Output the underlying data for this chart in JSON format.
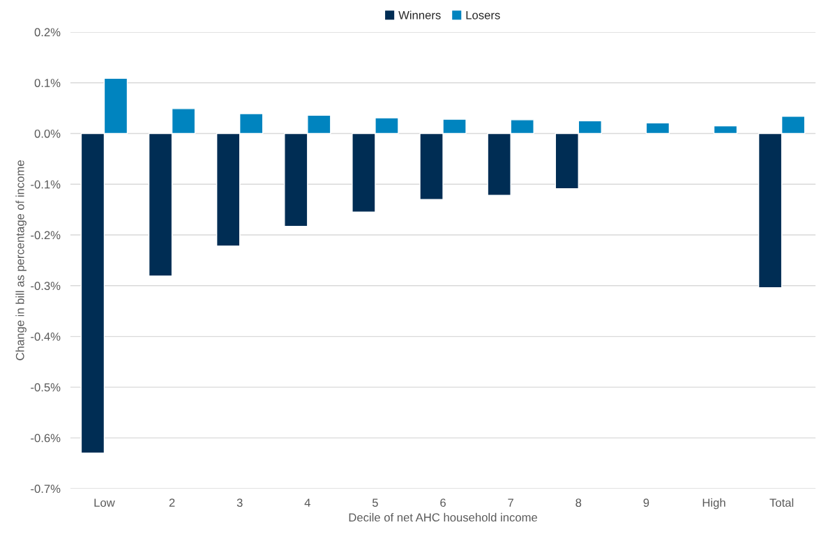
{
  "chart_data": {
    "type": "bar",
    "xlabel": "Decile of net AHC household income",
    "ylabel": "Change in bill as percentage of income",
    "categories": [
      "Low",
      "2",
      "3",
      "4",
      "5",
      "6",
      "7",
      "8",
      "9",
      "High",
      "Total"
    ],
    "series": [
      {
        "name": "Winners",
        "color": "#002d54",
        "values": [
          -0.63,
          -0.281,
          -0.222,
          -0.183,
          -0.155,
          -0.13,
          -0.122,
          -0.109,
          null,
          null,
          -0.304
        ]
      },
      {
        "name": "Losers",
        "color": "#0084bf",
        "values": [
          0.109,
          0.049,
          0.039,
          0.036,
          0.031,
          0.028,
          0.027,
          0.025,
          0.021,
          0.015,
          0.034
        ]
      }
    ],
    "ylim": [
      -0.7,
      0.2
    ],
    "yticks": [
      {
        "value": -0.7,
        "label": "-0.7%"
      },
      {
        "value": -0.6,
        "label": "-0.6%"
      },
      {
        "value": -0.5,
        "label": "-0.5%"
      },
      {
        "value": -0.4,
        "label": "-0.4%"
      },
      {
        "value": -0.3,
        "label": "-0.3%"
      },
      {
        "value": -0.2,
        "label": "-0.2%"
      },
      {
        "value": -0.1,
        "label": "-0.1%"
      },
      {
        "value": 0.0,
        "label": "0.0%"
      },
      {
        "value": 0.1,
        "label": "0.1%"
      },
      {
        "value": 0.2,
        "label": "0.2%"
      }
    ],
    "grid": "y",
    "legend": "top"
  }
}
